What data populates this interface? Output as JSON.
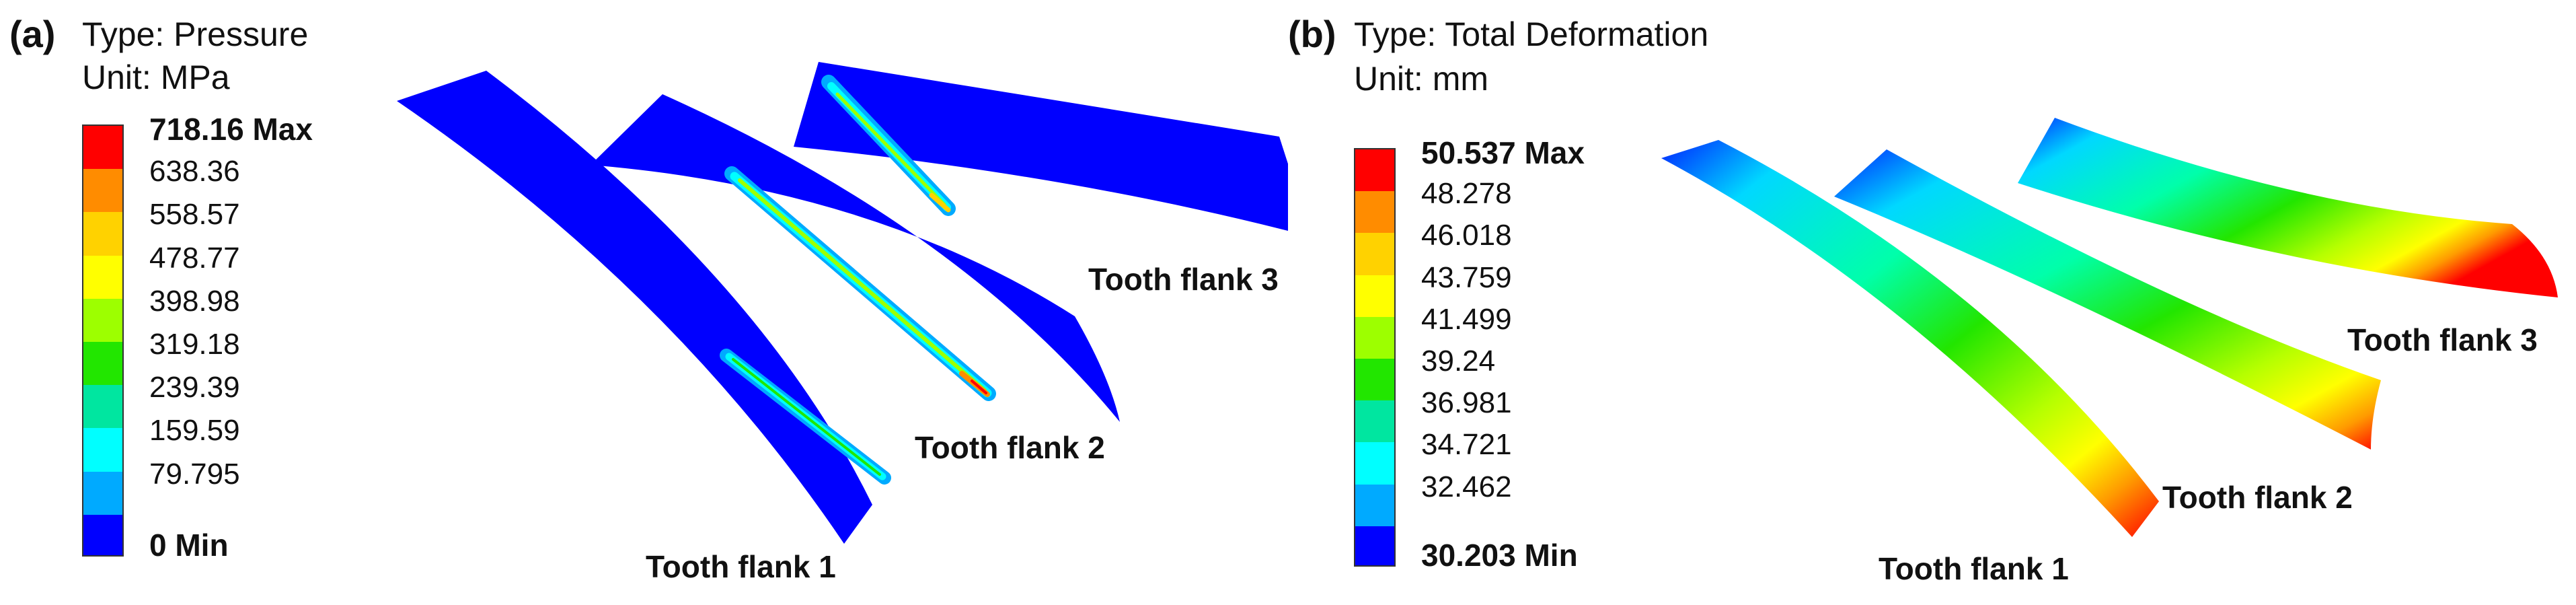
{
  "panel_a": {
    "letter": "(a)",
    "type_line": "Type: Pressure",
    "unit_line": "Unit: MPa",
    "legend": [
      "718.16 Max",
      "638.36",
      "558.57",
      "478.77",
      "398.98",
      "319.18",
      "239.39",
      "159.59",
      "79.795",
      "0 Min"
    ],
    "colors": [
      "#ff0000",
      "#ff8c00",
      "#ffd200",
      "#ffff00",
      "#9dff00",
      "#22e600",
      "#00e6a0",
      "#00ffff",
      "#00aaff",
      "#0000ff"
    ],
    "flanks": [
      "Tooth flank 1",
      "Tooth flank 2",
      "Tooth flank 3"
    ]
  },
  "panel_b": {
    "letter": "(b)",
    "type_line": "Type: Total Deformation",
    "unit_line": "Unit: mm",
    "legend": [
      "50.537 Max",
      "48.278",
      "46.018",
      "43.759",
      "41.499",
      "39.24",
      "36.981",
      "34.721",
      "32.462",
      "30.203 Min"
    ],
    "colors": [
      "#ff0000",
      "#ff8c00",
      "#ffd200",
      "#ffff00",
      "#9dff00",
      "#22e600",
      "#00e6a0",
      "#00ffff",
      "#00aaff",
      "#0000ff"
    ],
    "flanks": [
      "Tooth flank 1",
      "Tooth flank 2",
      "Tooth flank 3"
    ]
  }
}
